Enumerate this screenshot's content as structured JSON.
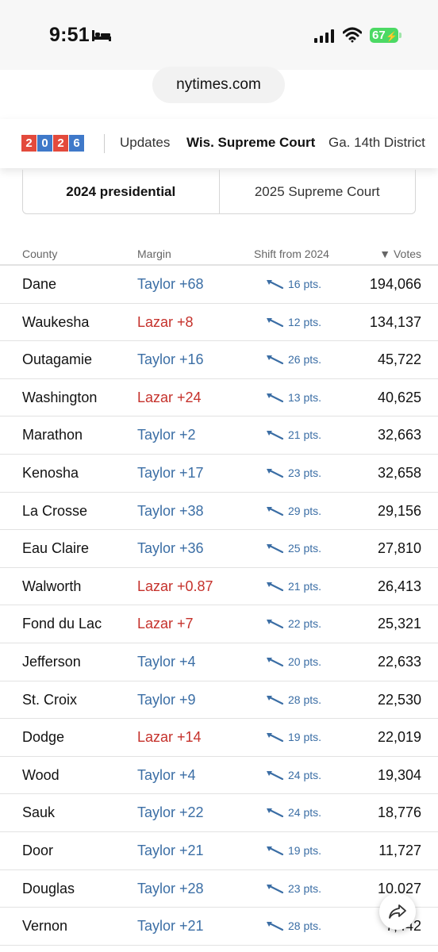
{
  "status_bar": {
    "time": "9:51",
    "battery": "67"
  },
  "url": "nytimes.com",
  "nav": {
    "logo_digits": [
      "2",
      "0",
      "2",
      "6"
    ],
    "items": [
      "Updates",
      "Wis. Supreme Court",
      "Ga. 14th District"
    ]
  },
  "toggle": {
    "active": "2024 presidential",
    "inactive": "2025 Supreme Court"
  },
  "table": {
    "headers": {
      "county": "County",
      "margin": "Margin",
      "shift": "Shift from 2024",
      "votes": "▼ Votes"
    },
    "rows": [
      {
        "county": "Dane",
        "margin": "Taylor +68",
        "party": "blue",
        "shift": "16 pts.",
        "votes": "194,066"
      },
      {
        "county": "Waukesha",
        "margin": "Lazar +8",
        "party": "red",
        "shift": "12 pts.",
        "votes": "134,137"
      },
      {
        "county": "Outagamie",
        "margin": "Taylor +16",
        "party": "blue",
        "shift": "26 pts.",
        "votes": "45,722"
      },
      {
        "county": "Washington",
        "margin": "Lazar +24",
        "party": "red",
        "shift": "13 pts.",
        "votes": "40,625"
      },
      {
        "county": "Marathon",
        "margin": "Taylor +2",
        "party": "blue",
        "shift": "21 pts.",
        "votes": "32,663"
      },
      {
        "county": "Kenosha",
        "margin": "Taylor +17",
        "party": "blue",
        "shift": "23 pts.",
        "votes": "32,658"
      },
      {
        "county": "La Crosse",
        "margin": "Taylor +38",
        "party": "blue",
        "shift": "29 pts.",
        "votes": "29,156"
      },
      {
        "county": "Eau Claire",
        "margin": "Taylor +36",
        "party": "blue",
        "shift": "25 pts.",
        "votes": "27,810"
      },
      {
        "county": "Walworth",
        "margin": "Lazar +0.87",
        "party": "red",
        "shift": "21 pts.",
        "votes": "26,413"
      },
      {
        "county": "Fond du Lac",
        "margin": "Lazar +7",
        "party": "red",
        "shift": "22 pts.",
        "votes": "25,321"
      },
      {
        "county": "Jefferson",
        "margin": "Taylor +4",
        "party": "blue",
        "shift": "20 pts.",
        "votes": "22,633"
      },
      {
        "county": "St. Croix",
        "margin": "Taylor +9",
        "party": "blue",
        "shift": "28 pts.",
        "votes": "22,530"
      },
      {
        "county": "Dodge",
        "margin": "Lazar +14",
        "party": "red",
        "shift": "19 pts.",
        "votes": "22,019"
      },
      {
        "county": "Wood",
        "margin": "Taylor +4",
        "party": "blue",
        "shift": "24 pts.",
        "votes": "19,304"
      },
      {
        "county": "Sauk",
        "margin": "Taylor +22",
        "party": "blue",
        "shift": "24 pts.",
        "votes": "18,776"
      },
      {
        "county": "Door",
        "margin": "Taylor +21",
        "party": "blue",
        "shift": "19 pts.",
        "votes": "11,727"
      },
      {
        "county": "Douglas",
        "margin": "Taylor +28",
        "party": "blue",
        "shift": "23 pts.",
        "votes": "10,027"
      },
      {
        "county": "Vernon",
        "margin": "Taylor +21",
        "party": "blue",
        "shift": "28 pts.",
        "votes": "7,442"
      }
    ]
  },
  "colors": {
    "blue": "#3b6ea5",
    "red": "#c5312b",
    "battery_green": "#4cd964"
  },
  "icons": {
    "share": "share-arrow-icon",
    "shift": "arrow-up-left-icon"
  }
}
